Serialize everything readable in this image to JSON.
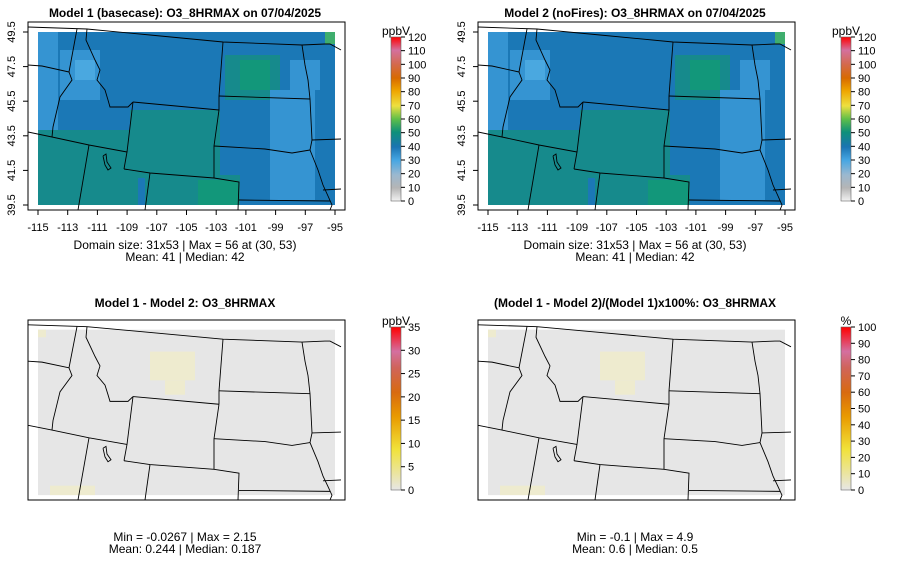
{
  "panels": [
    {
      "title": "Model 1 (basecase): O3_8HRMAX on 07/04/2025",
      "unit": "ppbV",
      "colorbar_ticks": [
        "0",
        "10",
        "20",
        "30",
        "40",
        "50",
        "60",
        "70",
        "80",
        "90",
        "100",
        "110",
        "120"
      ],
      "colorbar_range": [
        0,
        120
      ],
      "scale": "ozone",
      "field": "ozone",
      "show_axes": true,
      "stats": [
        "Domain size: 31x53 | Max = 56 at (30, 53)",
        "Mean: 41 |  Median: 42"
      ]
    },
    {
      "title": "Model 2 (noFires): O3_8HRMAX on 07/04/2025",
      "unit": "ppbV",
      "colorbar_ticks": [
        "0",
        "10",
        "20",
        "30",
        "40",
        "50",
        "60",
        "70",
        "80",
        "90",
        "100",
        "110",
        "120"
      ],
      "colorbar_range": [
        0,
        120
      ],
      "scale": "ozone",
      "field": "ozone",
      "show_axes": true,
      "stats": [
        "Domain size: 31x53 | Max = 56 at (30, 53)",
        "Mean: 41 |  Median: 42"
      ]
    },
    {
      "title": "Model 1 - Model 2: O3_8HRMAX",
      "unit": "ppbV",
      "colorbar_ticks": [
        "0",
        "5",
        "10",
        "15",
        "20",
        "25",
        "30",
        "35"
      ],
      "colorbar_range": [
        0,
        35
      ],
      "scale": "diff",
      "field": "diff",
      "show_axes": false,
      "stats": [
        "Min = -0.0267 | Max = 2.15",
        "Mean: 0.244 |  Median: 0.187"
      ]
    },
    {
      "title": "(Model 1 - Model 2)/(Model 1)x100%: O3_8HRMAX",
      "unit": "%",
      "colorbar_ticks": [
        "0",
        "10",
        "20",
        "30",
        "40",
        "50",
        "60",
        "70",
        "80",
        "90",
        "100"
      ],
      "colorbar_range": [
        0,
        100
      ],
      "scale": "diff",
      "field": "diff",
      "show_axes": false,
      "stats": [
        "Min = -0.1 | Max = 4.9",
        "Mean: 0.6 |  Median: 0.5"
      ]
    }
  ],
  "x_ticks": [
    "-115",
    "-113",
    "-111",
    "-109",
    "-107",
    "-105",
    "-103",
    "-101",
    "-99",
    "-97",
    "-95"
  ],
  "y_ticks": [
    "39.5",
    "41.5",
    "43.5",
    "45.5",
    "47.5",
    "49.5"
  ],
  "colors": {
    "ozone_base": "#1b78b6",
    "ozone_light": "#3594d2",
    "ozone_teal": "#168a8c",
    "ozone_green": "#12977a",
    "diff_base": "#e6e6e6",
    "diff_patch": "#eeebcf"
  }
}
